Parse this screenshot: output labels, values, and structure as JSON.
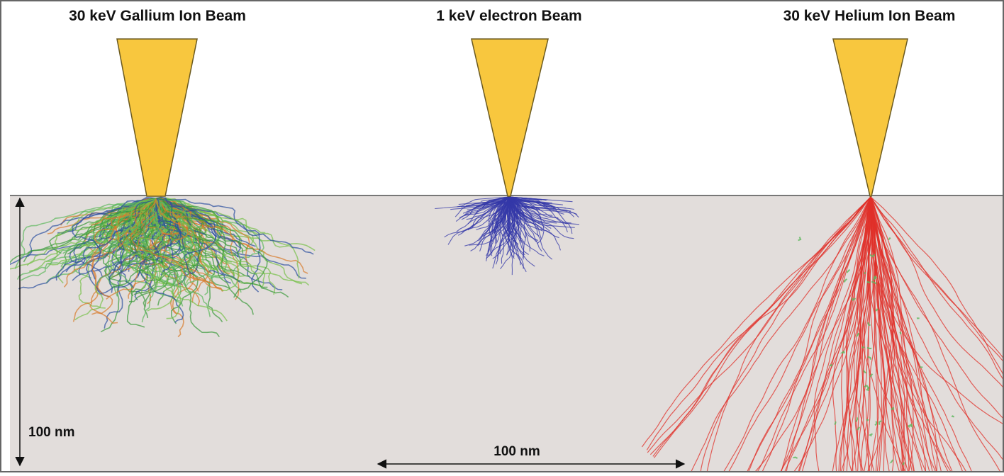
{
  "beams": [
    {
      "label": "30 keV Gallium Ion Beam"
    },
    {
      "label": "1 keV electron Beam"
    },
    {
      "label": "30 keV Helium Ion Beam"
    }
  ],
  "scale_bars": [
    {
      "label": "100 nm"
    },
    {
      "label": "100 nm"
    }
  ]
}
